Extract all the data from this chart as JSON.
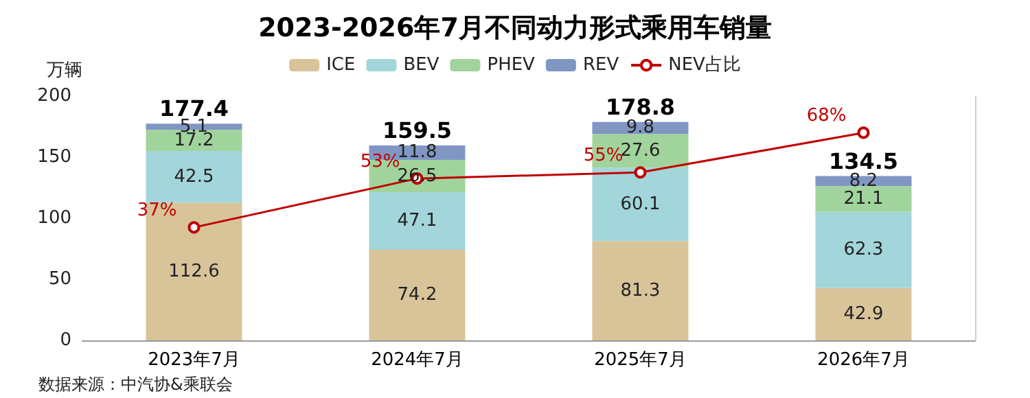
{
  "chart_data": {
    "type": "bar",
    "title": "2023-2026年7月不同动力形式乘用车销量",
    "ylabel": "万辆",
    "categories": [
      "2023年7月",
      "2024年7月",
      "2025年7月",
      "2026年7月"
    ],
    "stacked": true,
    "series": [
      {
        "name": "ICE",
        "color": "#d9c49a",
        "values": [
          112.6,
          74.2,
          81.3,
          42.9
        ]
      },
      {
        "name": "BEV",
        "color": "#a3d6da",
        "values": [
          42.5,
          47.1,
          60.1,
          62.3
        ]
      },
      {
        "name": "PHEV",
        "color": "#a1d49c",
        "values": [
          17.2,
          26.5,
          27.6,
          21.1
        ]
      },
      {
        "name": "REV",
        "color": "#8097c4",
        "values": [
          5.1,
          11.8,
          9.8,
          8.2
        ]
      },
      {
        "name": "NEV占比",
        "type": "line",
        "axis": "y2",
        "color": "#c00000",
        "values": [
          37,
          53,
          55,
          68
        ],
        "value_labels": [
          "37%",
          "53%",
          "55%",
          "68%"
        ],
        "marker": "circle"
      }
    ],
    "totals": [
      "177.4",
      "159.5",
      "178.8",
      "134.5"
    ],
    "data_labels": true,
    "ylim": [
      0,
      200
    ],
    "yticks": [
      0,
      50,
      100,
      150,
      200
    ],
    "y2lim": [
      0,
      80
    ],
    "grid": false,
    "legend": "top",
    "annotations": [
      "数据来源：中汽协&乘联会"
    ]
  }
}
